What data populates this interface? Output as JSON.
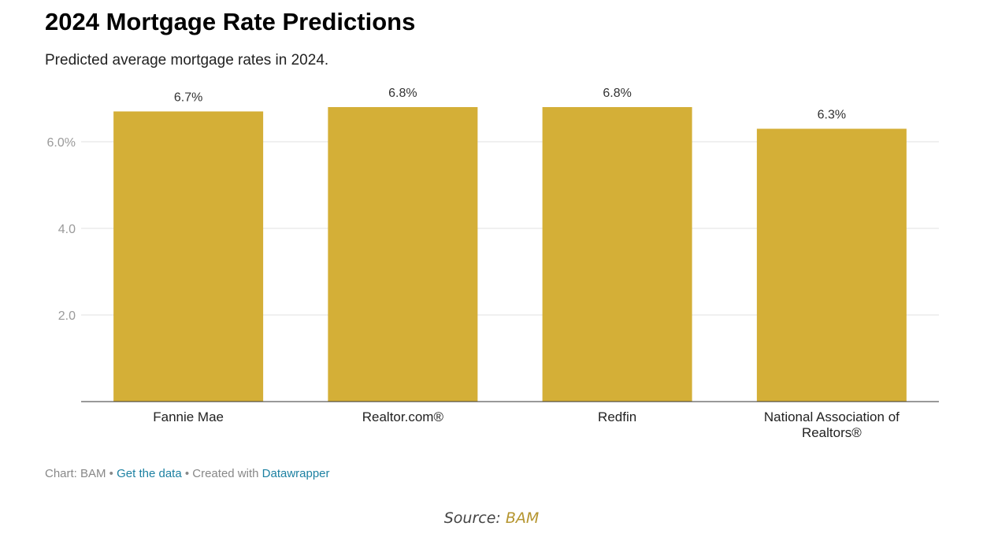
{
  "header": {
    "title": "2024 Mortgage Rate Predictions",
    "subtitle": "Predicted average mortgage rates in 2024."
  },
  "chart_data": {
    "type": "bar",
    "categories": [
      "Fannie Mae",
      "Realtor.com®",
      "Redfin",
      "National Association of Realtors®"
    ],
    "category_lines": [
      [
        "Fannie Mae"
      ],
      [
        "Realtor.com®"
      ],
      [
        "Redfin"
      ],
      [
        "National Association of",
        "Realtors®"
      ]
    ],
    "values": [
      6.7,
      6.8,
      6.8,
      6.3
    ],
    "value_labels": [
      "6.7%",
      "6.8%",
      "6.8%",
      "6.3%"
    ],
    "yticks": [
      {
        "value": 2,
        "label": "2.0"
      },
      {
        "value": 4,
        "label": "4.0"
      },
      {
        "value": 6,
        "label": "6.0%"
      }
    ],
    "ylim": [
      0,
      6.8
    ],
    "grid": true,
    "bar_color": "#d4af37"
  },
  "footer": {
    "prefix": "Chart: BAM • ",
    "get_data_link": "Get the data",
    "middle": " • Created with ",
    "datawrapper_link": "Datawrapper"
  },
  "source": {
    "label": "Source: ",
    "link": "BAM"
  }
}
